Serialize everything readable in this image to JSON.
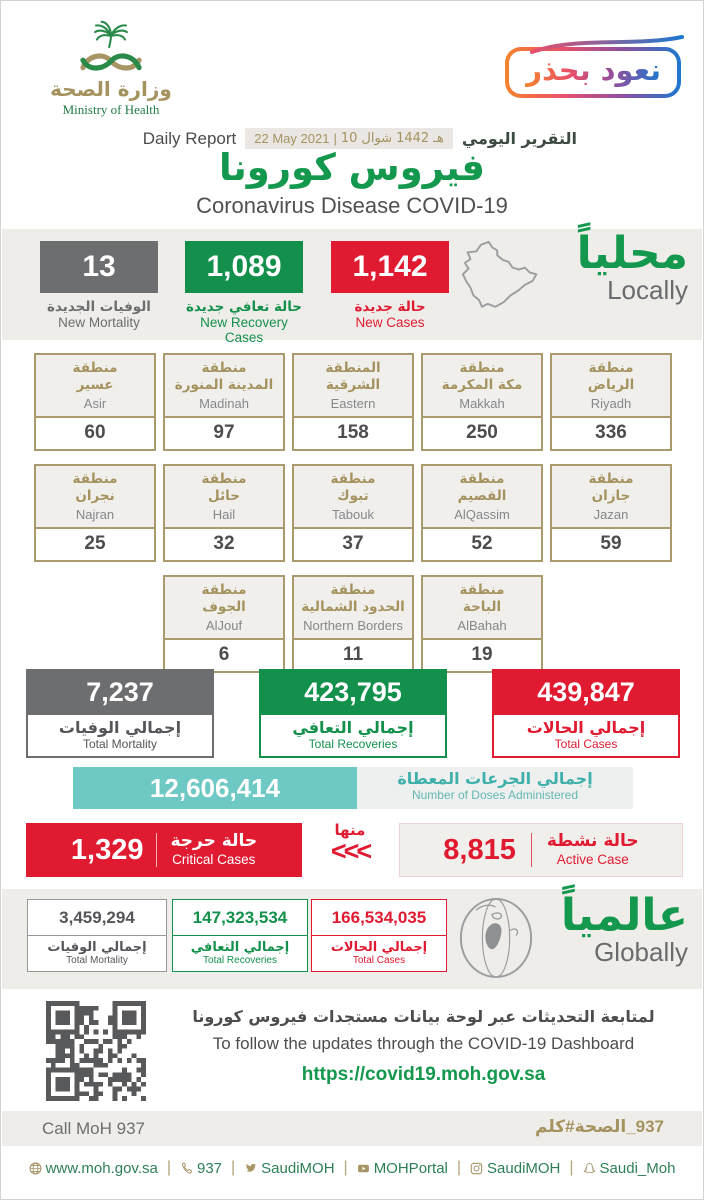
{
  "colors": {
    "green": "#13914c",
    "red": "#e01b31",
    "gray": "#6d6e70",
    "gold": "#a5935f",
    "teal": "#6ec8c3"
  },
  "header": {
    "logo_ar": "وزارة الصحة",
    "logo_en": "Ministry of Health",
    "badge": "نعود بحذر",
    "daily_report_en": "Daily Report",
    "date_gregorian": "22 May 2021",
    "date_separator": "|",
    "date_hijri_segments": [
      "10",
      "شوال",
      "1442",
      "هـ"
    ],
    "daily_report_ar": "التقرير اليومي",
    "title_ar": "فيروس كورونا",
    "title_en": "Coronavirus Disease COVID-19"
  },
  "locally": {
    "heading_ar": "محلياً",
    "heading_en": "Locally",
    "new_mortality": {
      "value": "13",
      "label_ar": "الوفيات الجديدة",
      "label_en": "New Mortality"
    },
    "new_recoveries": {
      "value": "1,089",
      "label_ar": "حالة تعافي جديدة",
      "label_en": "New Recovery Cases"
    },
    "new_cases": {
      "value": "1,142",
      "label_ar": "حالة جديدة",
      "label_en": "New Cases"
    }
  },
  "regions": {
    "items": [
      {
        "ar1": "منطقة",
        "ar2": "عسير",
        "en": "Asir",
        "value": "60"
      },
      {
        "ar1": "منطقة",
        "ar2": "المدينة المنورة",
        "en": "Madinah",
        "value": "97"
      },
      {
        "ar1": "المنطقة",
        "ar2": "الشرقية",
        "en": "Eastern",
        "value": "158"
      },
      {
        "ar1": "منطقة",
        "ar2": "مكة المكرمة",
        "en": "Makkah",
        "value": "250"
      },
      {
        "ar1": "منطقة",
        "ar2": "الرياض",
        "en": "Riyadh",
        "value": "336"
      },
      {
        "ar1": "منطقة",
        "ar2": "نجران",
        "en": "Najran",
        "value": "25"
      },
      {
        "ar1": "منطقة",
        "ar2": "حائل",
        "en": "Hail",
        "value": "32"
      },
      {
        "ar1": "منطقة",
        "ar2": "تبوك",
        "en": "Tabouk",
        "value": "37"
      },
      {
        "ar1": "منطقة",
        "ar2": "القصيم",
        "en": "AlQassim",
        "value": "52"
      },
      {
        "ar1": "منطقة",
        "ar2": "جازان",
        "en": "Jazan",
        "value": "59"
      },
      {
        "ar1": "منطقة",
        "ar2": "الجوف",
        "en": "AlJouf",
        "value": "6"
      },
      {
        "ar1": "منطقة",
        "ar2": "الحدود الشمالية",
        "en": "Northern Borders",
        "value": "11"
      },
      {
        "ar1": "منطقة",
        "ar2": "الباحة",
        "en": "AlBahah",
        "value": "19"
      }
    ]
  },
  "totals": {
    "mortality": {
      "value": "7,237",
      "label_ar": "إجمالي الوفيات",
      "label_en": "Total Mortality"
    },
    "recoveries": {
      "value": "423,795",
      "label_ar": "إجمالي التعافي",
      "label_en": "Total Recoveries"
    },
    "cases": {
      "value": "439,847",
      "label_ar": "إجمالي الحالات",
      "label_en": "Total Cases"
    }
  },
  "doses": {
    "value": "12,606,414",
    "label_ar": "إجمالي الجرعات المعطاة",
    "label_en": "Number of Doses Administered"
  },
  "critical_active": {
    "critical": {
      "value": "1,329",
      "label_ar": "حالة حرجة",
      "label_en": "Critical Cases"
    },
    "of_which_ar": "منها",
    "chevrons": "<<<",
    "active": {
      "value": "8,815",
      "label_ar": "حالة نشطة",
      "label_en": "Active Case"
    }
  },
  "globally": {
    "heading_ar": "عالمياً",
    "heading_en": "Globally",
    "mortality": {
      "value": "3,459,294",
      "label_ar": "إجمالي الوفيات",
      "label_en": "Total Mortality"
    },
    "recoveries": {
      "value": "147,323,534",
      "label_ar": "إجمالي التعافي",
      "label_en": "Total Recoveries"
    },
    "cases": {
      "value": "166,534,035",
      "label_ar": "إجمالي الحالات",
      "label_en": "Total Cases"
    }
  },
  "dashboard": {
    "line_ar": "لمتابعة التحديثات عبر لوحة بيانات مستجدات فيروس كورونا",
    "line_en": "To follow the updates through the COVID-19 Dashboard",
    "url": "https://covid19.moh.gov.sa"
  },
  "callbar": {
    "en": "Call MoH 937",
    "hashtag_segments": [
      "كلم",
      "#",
      "الصحة",
      "_",
      "937"
    ]
  },
  "footer": {
    "separator": "|",
    "items": [
      {
        "icon": "globe-icon",
        "label": "www.moh.gov.sa"
      },
      {
        "icon": "phone-icon",
        "label": "937"
      },
      {
        "icon": "twitter-icon",
        "label": "SaudiMOH"
      },
      {
        "icon": "youtube-icon",
        "label": "MOHPortal"
      },
      {
        "icon": "instagram-icon",
        "label": "SaudiMOH"
      },
      {
        "icon": "snapchat-icon",
        "label": "Saudi_Moh"
      }
    ]
  }
}
